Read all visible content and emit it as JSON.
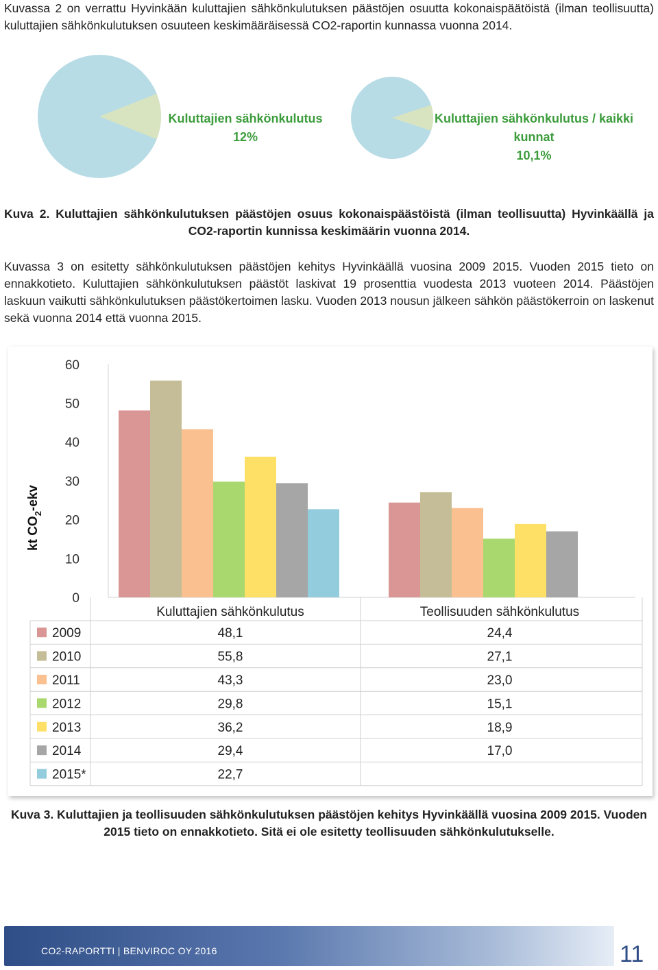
{
  "intro_text": "Kuvassa 2 on verrattu Hyvinkään kuluttajien sähkönkulutuksen päästöjen osuutta kokonaispäätöistä (ilman teollisuutta) kuluttajien sähkönkulutuksen osuuteen keskimääräisessä CO2-raportin kunnassa vuonna 2014.",
  "pies": [
    {
      "label": "Kuluttajien sähkönkulutus",
      "value_text": "12%",
      "share": 0.12
    },
    {
      "label": "Kuluttajien sähkönkulutus / kaikki kunnat",
      "value_text": "10,1%",
      "share": 0.101
    }
  ],
  "pie_colors": {
    "main": "#b8dce6",
    "slice": "#d8e4c0",
    "label": "#3c9c3c"
  },
  "figure2_caption": "Kuva 2. Kuluttajien sähkönkulutuksen päästöjen osuus kokonaispäästöistä (ilman teollisuutta) Hyvinkäällä ja CO2-raportin kunnissa keskimäärin vuonna 2014.",
  "body_text": "Kuvassa 3 on esitetty sähkönkulutuksen päästöjen kehitys Hyvinkäällä vuosina 2009 2015. Vuoden 2015 tieto on ennakkotieto. Kuluttajien sähkönkulutuksen päästöt laskivat 19 prosenttia vuodesta 2013 vuoteen 2014. Päästöjen laskuun vaikutti sähkönkulutuksen päästökertoimen lasku. Vuoden 2013 nousun jälkeen sähkön päästökerroin on laskenut sekä vuonna 2014 että vuonna 2015.",
  "chart_data": {
    "type": "bar",
    "categories": [
      "Kuluttajien sähkönkulutus",
      "Teollisuuden sähkönkulutus"
    ],
    "ylabel": "kt CO2-ekv",
    "ylim": [
      0,
      60
    ],
    "yticks": [
      "0",
      "10",
      "20",
      "30",
      "40",
      "50",
      "60"
    ],
    "grid": false,
    "legend": "data-table-below",
    "series": [
      {
        "name": "2009",
        "color": "#d99694",
        "values": [
          48.1,
          24.4
        ],
        "labels": [
          "48,1",
          "24,4"
        ]
      },
      {
        "name": "2010",
        "color": "#c4bd97",
        "values": [
          55.8,
          27.1
        ],
        "labels": [
          "55,8",
          "27,1"
        ]
      },
      {
        "name": "2011",
        "color": "#fac08f",
        "values": [
          43.3,
          23.0
        ],
        "labels": [
          "43,3",
          "23,0"
        ]
      },
      {
        "name": "2012",
        "color": "#a9d86e",
        "values": [
          29.8,
          15.1
        ],
        "labels": [
          "29,8",
          "15,1"
        ]
      },
      {
        "name": "2013",
        "color": "#ffe066",
        "values": [
          36.2,
          18.9
        ],
        "labels": [
          "36,2",
          "18,9"
        ]
      },
      {
        "name": "2014",
        "color": "#a6a6a6",
        "values": [
          29.4,
          17.0
        ],
        "labels": [
          "29,4",
          "17,0"
        ]
      },
      {
        "name": "2015*",
        "color": "#93cddd",
        "values": [
          22.7,
          null
        ],
        "labels": [
          "22,7",
          ""
        ]
      }
    ]
  },
  "figure3_caption": "Kuva 3. Kuluttajien ja teollisuuden sähkönkulutuksen päästöjen kehitys Hyvinkäällä vuosina 2009 2015. Vuoden 2015 tieto on ennakkotieto. Sitä ei ole esitetty teollisuuden sähkönkulutukselle.",
  "footer": {
    "text": "CO2-RAPORTTI | BENVIROC OY 2016",
    "page_number": "11"
  }
}
